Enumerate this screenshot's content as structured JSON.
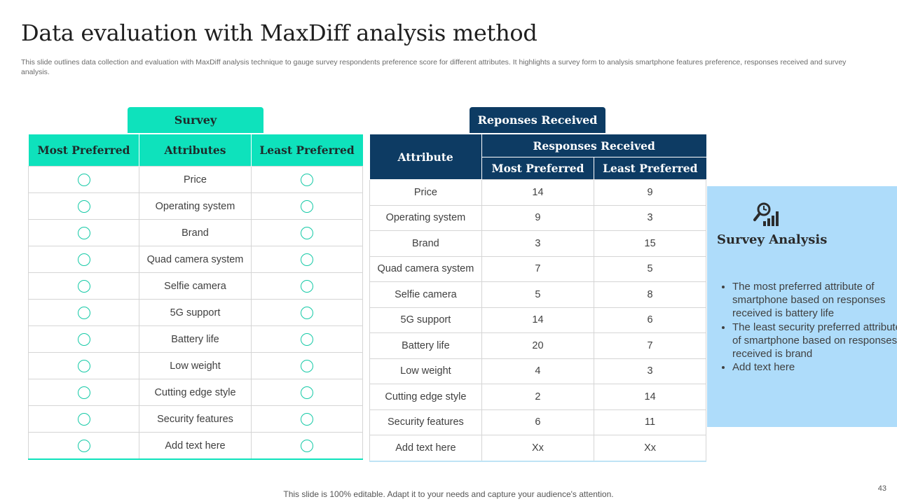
{
  "title": "Data evaluation with MaxDiff analysis method",
  "subtitle": "This slide outlines data collection and evaluation with MaxDiff analysis technique to gauge survey respondents preference score for different attributes. It highlights a survey form to analysis smartphone features preference, responses received and survey analysis.",
  "survey": {
    "tab_label": "Survey",
    "headers": [
      "Most Preferred",
      "Attributes",
      "Least Preferred"
    ],
    "attributes": [
      "Price",
      "Operating system",
      "Brand",
      "Quad camera system",
      "Selfie camera",
      "5G support",
      "Battery life",
      "Low weight",
      "Cutting edge style",
      "Security features",
      "Add text here"
    ]
  },
  "responses": {
    "tab_label": "Reponses Received",
    "header_attribute": "Attribute",
    "header_group": "Responses Received",
    "header_most": "Most Preferred",
    "header_least": "Least Preferred",
    "rows": [
      {
        "attribute": "Price",
        "most": "14",
        "least": "9"
      },
      {
        "attribute": "Operating system",
        "most": "9",
        "least": "3"
      },
      {
        "attribute": "Brand",
        "most": "3",
        "least": "15"
      },
      {
        "attribute": "Quad camera system",
        "most": "7",
        "least": "5"
      },
      {
        "attribute": "Selfie camera",
        "most": "5",
        "least": "8"
      },
      {
        "attribute": "5G support",
        "most": "14",
        "least": "6"
      },
      {
        "attribute": "Battery life",
        "most": "20",
        "least": "7"
      },
      {
        "attribute": "Low weight",
        "most": "4",
        "least": "3"
      },
      {
        "attribute": "Cutting edge style",
        "most": "2",
        "least": "14"
      },
      {
        "attribute": "Security features",
        "most": "6",
        "least": "11"
      },
      {
        "attribute": "Add text here",
        "most": "Xx",
        "least": "Xx"
      }
    ]
  },
  "analysis": {
    "icon": "analysis-chart-icon",
    "title": "Survey Analysis",
    "bullets": [
      "The most preferred attribute of smartphone based on responses received is battery life",
      "The least security preferred attribute of smartphone based on responses received is brand",
      "Add text here"
    ]
  },
  "footer": "This slide is 100% editable. Adapt it to your needs and capture your audience's attention.",
  "page_number": "43",
  "colors": {
    "teal": "#0ee2bc",
    "navy": "#0d3b63",
    "light_blue": "#aedcfa"
  }
}
